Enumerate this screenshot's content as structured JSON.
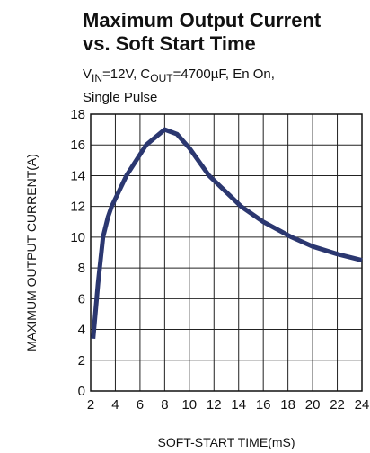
{
  "chart_data": {
    "type": "line",
    "title": [
      "Maximum Output Current",
      "vs. Soft Start Time"
    ],
    "subtitle": [
      [
        {
          "text": "V",
          "sub": false
        },
        {
          "text": "IN",
          "sub": true
        },
        {
          "text": "=12V, C",
          "sub": false
        },
        {
          "text": "OUT",
          "sub": true
        },
        {
          "text": "=4700µF, En On,",
          "sub": false
        }
      ],
      [
        {
          "text": "Single Pulse",
          "sub": false
        }
      ]
    ],
    "x_label": "SOFT-START TIME(mS)",
    "y_label": "MAXIMUM OUTPUT CURRENT(A)",
    "xlim": [
      2,
      24
    ],
    "ylim": [
      0,
      18
    ],
    "xticks": [
      2,
      4,
      6,
      8,
      10,
      12,
      14,
      16,
      18,
      20,
      22,
      24
    ],
    "yticks": [
      0,
      2,
      4,
      6,
      8,
      10,
      12,
      14,
      16,
      18
    ],
    "grid": true,
    "series": [
      {
        "color": "#2b3770",
        "x": [
          2.2,
          2.6,
          3,
          3.4,
          3.7,
          4.9,
          6.5,
          8,
          9,
          10,
          11.6,
          14.2,
          16,
          18.3,
          20,
          22,
          24
        ],
        "values": [
          3.4,
          7,
          10,
          11.3,
          12,
          14,
          16,
          17,
          16.7,
          15.8,
          14,
          12,
          11,
          10,
          9.4,
          8.9,
          8.5
        ]
      }
    ]
  }
}
